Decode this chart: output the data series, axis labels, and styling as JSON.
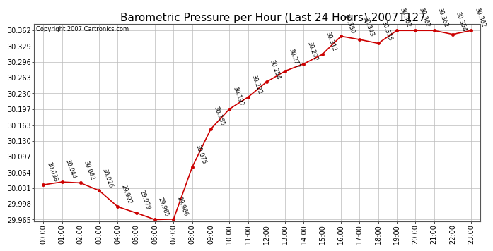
{
  "title": "Barometric Pressure per Hour (Last 24 Hours) 20071127",
  "copyright": "Copyright 2007 Cartronics.com",
  "hours": [
    "00:00",
    "01:00",
    "02:00",
    "03:00",
    "04:00",
    "05:00",
    "06:00",
    "07:00",
    "08:00",
    "09:00",
    "10:00",
    "11:00",
    "12:00",
    "13:00",
    "14:00",
    "15:00",
    "16:00",
    "17:00",
    "18:00",
    "19:00",
    "20:00",
    "21:00",
    "22:00",
    "23:00"
  ],
  "values": [
    30.038,
    30.044,
    30.042,
    30.026,
    29.992,
    29.979,
    29.965,
    29.966,
    30.075,
    30.155,
    30.197,
    30.222,
    30.254,
    30.277,
    30.292,
    30.312,
    30.35,
    30.343,
    30.335,
    30.362,
    30.362,
    30.362,
    30.354,
    30.362
  ],
  "line_color": "#cc0000",
  "marker_color": "#cc0000",
  "bg_color": "#ffffff",
  "grid_color": "#bbbbbb",
  "ylim_min": 29.9615,
  "ylim_max": 30.375,
  "ytick_values": [
    29.965,
    29.998,
    30.031,
    30.064,
    30.097,
    30.13,
    30.163,
    30.197,
    30.23,
    30.263,
    30.296,
    30.329,
    30.362
  ],
  "title_fontsize": 11,
  "copyright_fontsize": 6,
  "tick_fontsize": 7,
  "annotation_fontsize": 6,
  "annotation_rotation": -70
}
